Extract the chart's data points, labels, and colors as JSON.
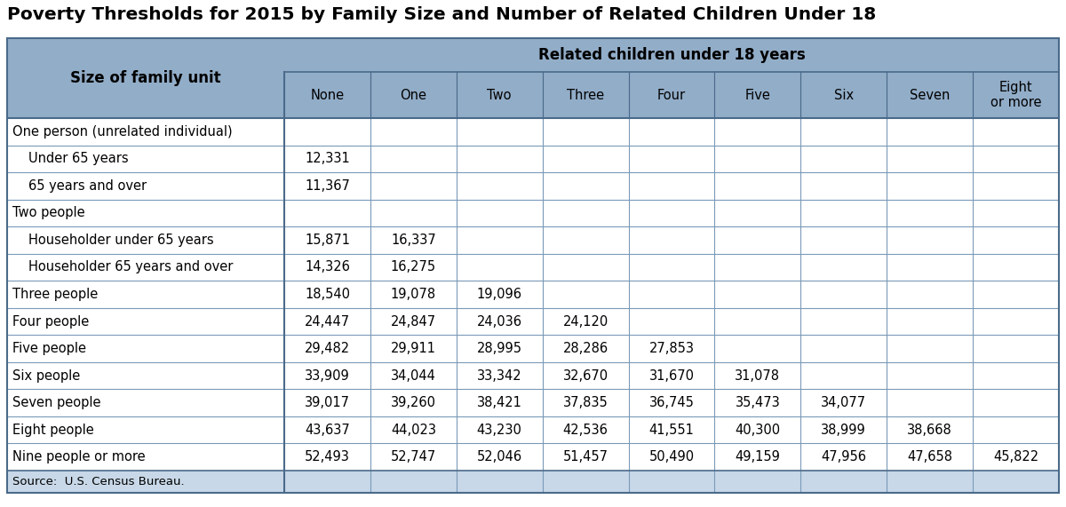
{
  "title": "Poverty Thresholds for 2015 by Family Size and Number of Related Children Under 18",
  "source": "Source:  U.S. Census Bureau.",
  "header_bg": "#92adc8",
  "source_bg": "#c8d8e8",
  "border_color": "#4a6a8a",
  "grid_color": "#7a9ab8",
  "title_color": "#000000",
  "col_header_row1": "Related children under 18 years",
  "col_header_row2": [
    "None",
    "One",
    "Two",
    "Three",
    "Four",
    "Five",
    "Six",
    "Seven",
    "Eight\nor more"
  ],
  "row_label_col": "Size of family unit",
  "rows": [
    {
      "label": "One person (unrelated individual)",
      "indent": 0,
      "values": [
        "",
        "",
        "",
        "",
        "",
        "",
        "",
        "",
        ""
      ]
    },
    {
      "label": "Under 65 years",
      "indent": 1,
      "values": [
        "12,331",
        "",
        "",
        "",
        "",
        "",
        "",
        "",
        ""
      ]
    },
    {
      "label": "65 years and over",
      "indent": 1,
      "values": [
        "11,367",
        "",
        "",
        "",
        "",
        "",
        "",
        "",
        ""
      ]
    },
    {
      "label": "Two people",
      "indent": 0,
      "values": [
        "",
        "",
        "",
        "",
        "",
        "",
        "",
        "",
        ""
      ]
    },
    {
      "label": "Householder under 65 years",
      "indent": 1,
      "values": [
        "15,871",
        "16,337",
        "",
        "",
        "",
        "",
        "",
        "",
        ""
      ]
    },
    {
      "label": "Householder 65 years and over",
      "indent": 1,
      "values": [
        "14,326",
        "16,275",
        "",
        "",
        "",
        "",
        "",
        "",
        ""
      ]
    },
    {
      "label": "Three people",
      "indent": 0,
      "values": [
        "18,540",
        "19,078",
        "19,096",
        "",
        "",
        "",
        "",
        "",
        ""
      ]
    },
    {
      "label": "Four people",
      "indent": 0,
      "values": [
        "24,447",
        "24,847",
        "24,036",
        "24,120",
        "",
        "",
        "",
        "",
        ""
      ]
    },
    {
      "label": "Five people",
      "indent": 0,
      "values": [
        "29,482",
        "29,911",
        "28,995",
        "28,286",
        "27,853",
        "",
        "",
        "",
        ""
      ]
    },
    {
      "label": "Six people",
      "indent": 0,
      "values": [
        "33,909",
        "34,044",
        "33,342",
        "32,670",
        "31,670",
        "31,078",
        "",
        "",
        ""
      ]
    },
    {
      "label": "Seven people",
      "indent": 0,
      "values": [
        "39,017",
        "39,260",
        "38,421",
        "37,835",
        "36,745",
        "35,473",
        "34,077",
        "",
        ""
      ]
    },
    {
      "label": "Eight people",
      "indent": 0,
      "values": [
        "43,637",
        "44,023",
        "43,230",
        "42,536",
        "41,551",
        "40,300",
        "38,999",
        "38,668",
        ""
      ]
    },
    {
      "label": "Nine people or more",
      "indent": 0,
      "values": [
        "52,493",
        "52,747",
        "52,046",
        "51,457",
        "50,490",
        "49,159",
        "47,956",
        "47,658",
        "45,822"
      ]
    }
  ],
  "figsize": [
    12.0,
    5.71
  ],
  "dpi": 100
}
